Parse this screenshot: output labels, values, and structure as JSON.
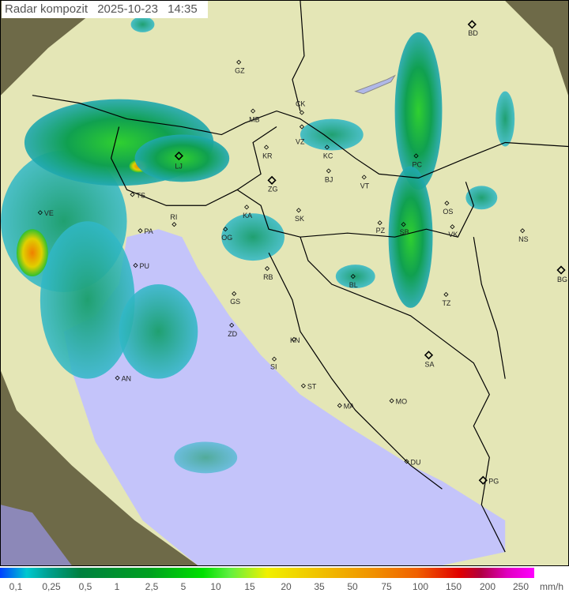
{
  "title": {
    "label": "Radar kompozit",
    "date": "2025-10-23",
    "time": "14:35"
  },
  "legend": {
    "unit": "mm/h",
    "ticks": [
      "0,1",
      "0,25",
      "0,5",
      "1",
      "2,5",
      "5",
      "10",
      "15",
      "20",
      "35",
      "50",
      "75",
      "100",
      "150",
      "200",
      "250"
    ]
  },
  "map": {
    "colors": {
      "outside_range": "#6e6a48",
      "land": "#e4e6b6",
      "sea": "#c4c4fa",
      "rain_light": "#20a0a0",
      "rain_moderate": "#10b040",
      "rain_heavy": "#f0a000"
    },
    "cities": [
      "GZ",
      "MB",
      "CK",
      "VZ",
      "KR",
      "KC",
      "BJ",
      "VT",
      "ZG",
      "KA",
      "SK",
      "OG",
      "PZ",
      "SB",
      "OS",
      "VK",
      "NS",
      "BG",
      "BD",
      "PC",
      "LJ",
      "TS",
      "VE",
      "RI",
      "PA",
      "PU",
      "RB",
      "BL",
      "TZ",
      "GS",
      "ZD",
      "KN",
      "SI",
      "SA",
      "ST",
      "AN",
      "MA",
      "MO",
      "DU",
      "PG"
    ],
    "capitals": [
      "BD",
      "LJ",
      "ZG",
      "SA",
      "BG",
      "PG"
    ]
  }
}
